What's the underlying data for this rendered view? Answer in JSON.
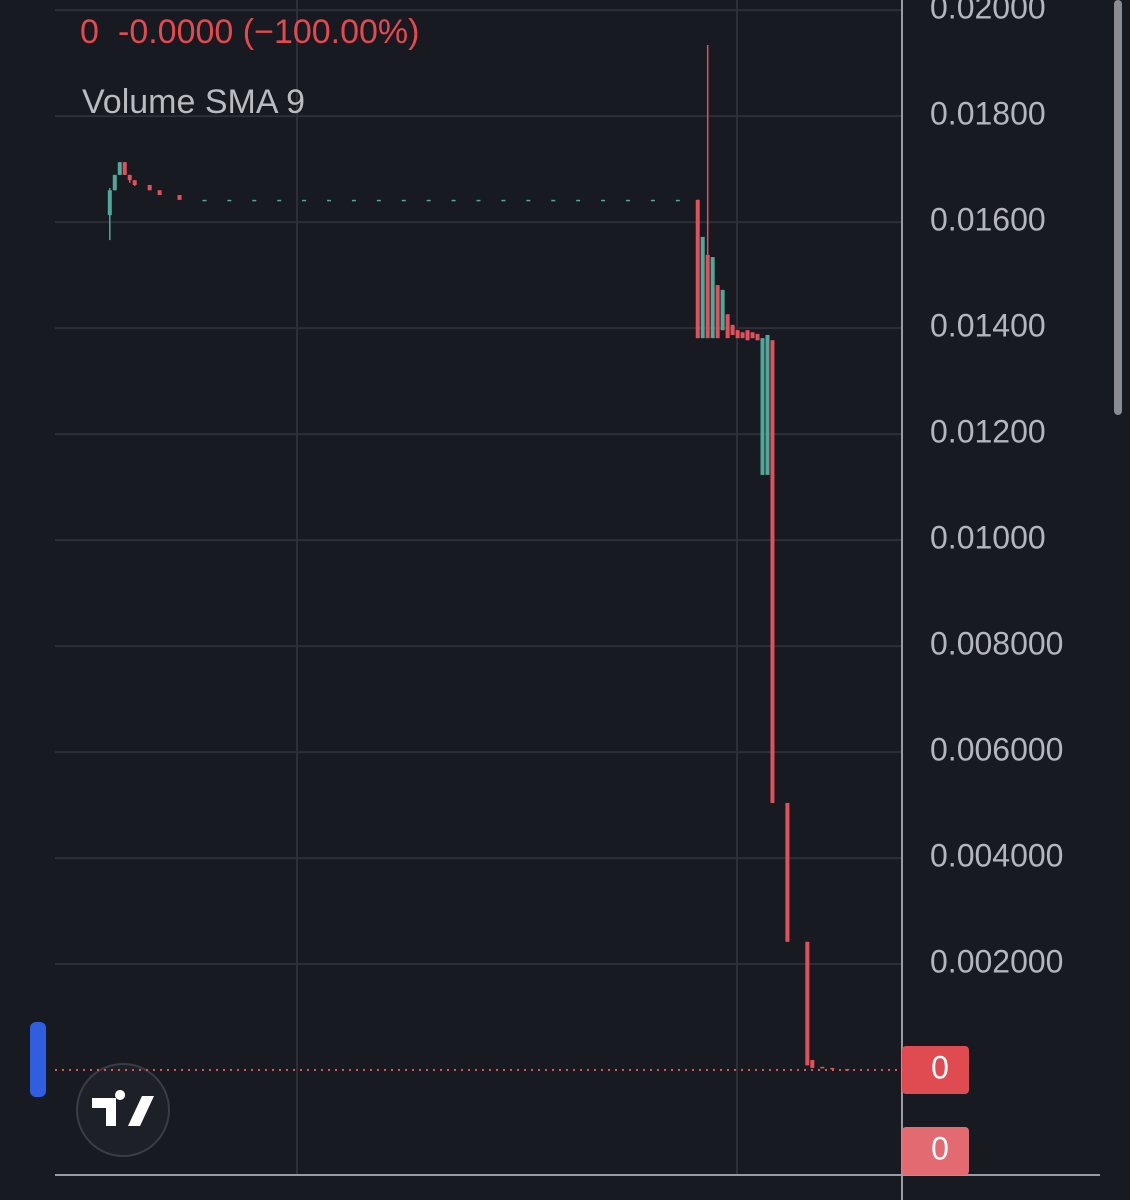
{
  "chart_data": {
    "type": "candlestick",
    "legend_close": "0",
    "legend_change": "-0.0000 (−100.00%)",
    "indicator": "Volume SMA 9",
    "x": [
      11,
      12,
      13,
      14,
      15,
      16,
      19,
      21,
      25,
      30,
      35,
      40,
      45,
      50,
      55,
      60,
      65,
      70,
      75,
      80,
      85,
      90,
      95,
      100,
      105,
      110,
      115,
      120,
      125,
      129,
      130,
      131,
      132,
      133,
      134,
      135,
      136,
      137,
      138,
      139,
      140,
      141,
      142,
      143,
      144,
      147,
      151,
      152,
      154,
      156,
      159
    ],
    "xlim": [
      0,
      170
    ],
    "open": [
      0.01613,
      0.0166,
      0.01689,
      0.01713,
      0.01689,
      0.01679,
      0.0167,
      0.0166,
      0.01651,
      0.01642,
      0.01642,
      0.01642,
      0.01642,
      0.01642,
      0.01642,
      0.01642,
      0.01642,
      0.01642,
      0.01642,
      0.01642,
      0.01642,
      0.01642,
      0.01642,
      0.01642,
      0.01642,
      0.01642,
      0.01642,
      0.01642,
      0.01642,
      0.01642,
      0.01381,
      0.01538,
      0.01381,
      0.01481,
      0.01396,
      0.01426,
      0.01406,
      0.01396,
      0.01392,
      0.01396,
      0.01392,
      0.01389,
      0.01123,
      0.01123,
      0.01377,
      0.00504,
      0.00242,
      0.00019,
      6e-05,
      4e-05,
      2e-05
    ],
    "high": [
      0.01664,
      0.01689,
      0.01713,
      0.01713,
      0.01689,
      0.01679,
      0.0167,
      0.0166,
      0.01651,
      0.01642,
      0.01642,
      0.01642,
      0.01642,
      0.01642,
      0.01642,
      0.01642,
      0.01642,
      0.01642,
      0.01642,
      0.01642,
      0.01642,
      0.01642,
      0.01642,
      0.01642,
      0.01642,
      0.01642,
      0.01642,
      0.01642,
      0.01642,
      0.01642,
      0.01572,
      0.01934,
      0.01534,
      0.01481,
      0.01472,
      0.01426,
      0.01406,
      0.01396,
      0.01392,
      0.01396,
      0.01392,
      0.01389,
      0.01381,
      0.01387,
      0.01377,
      0.00504,
      0.00242,
      0.00019,
      6e-05,
      4e-05,
      2e-05
    ],
    "low": [
      0.01566,
      0.0166,
      0.01689,
      0.01689,
      0.01674,
      0.01668,
      0.0166,
      0.01651,
      0.01642,
      0.01642,
      0.01642,
      0.01642,
      0.01642,
      0.01642,
      0.01642,
      0.01642,
      0.01642,
      0.01642,
      0.01642,
      0.01642,
      0.01642,
      0.01642,
      0.01642,
      0.01642,
      0.01642,
      0.01642,
      0.01642,
      0.01642,
      0.01642,
      0.01381,
      0.01381,
      0.01381,
      0.01381,
      0.01381,
      0.01396,
      0.01381,
      0.01387,
      0.01381,
      0.01381,
      0.01377,
      0.01381,
      0.01377,
      0.01123,
      0.01123,
      0.00504,
      0.00242,
      9e-05,
      4e-05,
      4e-05,
      2e-05,
      0
    ],
    "close": [
      0.0166,
      0.01689,
      0.01713,
      0.01689,
      0.01679,
      0.0167,
      0.0166,
      0.01651,
      0.01642,
      0.01642,
      0.01642,
      0.01642,
      0.01642,
      0.01642,
      0.01642,
      0.01642,
      0.01642,
      0.01642,
      0.01642,
      0.01642,
      0.01642,
      0.01642,
      0.01642,
      0.01642,
      0.01642,
      0.01642,
      0.01642,
      0.01642,
      0.01642,
      0.01381,
      0.01572,
      0.01381,
      0.01534,
      0.01381,
      0.01472,
      0.01381,
      0.01387,
      0.01381,
      0.01381,
      0.01377,
      0.01381,
      0.01377,
      0.01381,
      0.01387,
      0.00504,
      0.00242,
      9e-05,
      4e-05,
      4e-05,
      2e-05,
      0
    ],
    "up_color": "#4fa89a",
    "down_color": "#e2505a",
    "ylim": [
      -0.00198,
      0.02019
    ],
    "yticks": [
      {
        "value": 0.002,
        "label": "0.002000"
      },
      {
        "value": 0.004,
        "label": "0.004000"
      },
      {
        "value": 0.006,
        "label": "0.006000"
      },
      {
        "value": 0.008,
        "label": "0.008000"
      },
      {
        "value": 0.01,
        "label": "0.01000"
      },
      {
        "value": 0.012,
        "label": "0.01200"
      },
      {
        "value": 0.014,
        "label": "0.01400"
      },
      {
        "value": 0.016,
        "label": "0.01600"
      },
      {
        "value": 0.018,
        "label": "0.01800"
      },
      {
        "value": 0.02,
        "label": "0.02000"
      }
    ],
    "grid": true,
    "last_price": 0,
    "last_volume": 0
  }
}
